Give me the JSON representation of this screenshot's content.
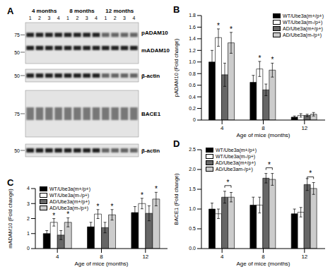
{
  "panel_labels": [
    "A"
  ],
  "blot": {
    "ages": [
      "4 months",
      "8 months",
      "12 months"
    ],
    "lanes": [
      1,
      2,
      3,
      4
    ],
    "panels": [
      {
        "bands": [
          "pADAM10",
          "mADAM10"
        ],
        "markers": [
          75,
          50
        ]
      },
      {
        "bands": [
          "β-actin"
        ],
        "markers": [
          50
        ]
      },
      {
        "bands": [
          "BACE1"
        ],
        "markers": [
          75
        ]
      },
      {
        "bands": [
          "β-actin"
        ],
        "markers": [
          50
        ]
      }
    ]
  },
  "chart_data": [
    {
      "type": "bar",
      "panel": "B",
      "x_label": "Age of mice (months)",
      "y_label": "pADAM10 (Fold change)",
      "categories": [
        "4",
        "8",
        "12"
      ],
      "ylim": [
        0,
        1.8
      ],
      "yticks": [
        0,
        {
          "value": 0.2,
          "label": "0.2"
        },
        {
          "value": 0.4,
          "label": "0.4"
        },
        {
          "value": 0.6,
          "label": "0.6"
        },
        {
          "value": 0.8,
          "label": "0.8"
        },
        {
          "value": 1.0,
          "label": "1.0"
        },
        {
          "value": 1.2,
          "label": "1.2"
        },
        {
          "value": 1.4,
          "label": "1.4"
        },
        {
          "value": 1.6,
          "label": "1.6"
        },
        {
          "value": 1.8,
          "label": "1.8"
        }
      ],
      "legend": "top right",
      "series": [
        {
          "name": "WT/Ube3a(m+/p+)",
          "color": "#000000",
          "values": [
            1.0,
            0.65,
            0.05
          ],
          "errors": [
            0.2,
            0.12,
            0.02
          ]
        },
        {
          "name": "WT/Ube3a(m-/p+)",
          "color": "#ffffff",
          "values": [
            1.42,
            0.88,
            0.08
          ],
          "errors": [
            0.15,
            0.13,
            0.03
          ],
          "significance": [
            "*",
            "*",
            null
          ]
        },
        {
          "name": "AD/Ube3a(m+/p+)",
          "color": "#666666",
          "values": [
            0.78,
            0.52,
            0.08
          ],
          "errors": [
            0.2,
            0.1,
            0.02
          ]
        },
        {
          "name": "AD/Ube3a(m-/p+)",
          "color": "#cccccc",
          "values": [
            1.33,
            0.86,
            0.1
          ],
          "errors": [
            0.18,
            0.12,
            0.03
          ],
          "significance": [
            "*",
            "*",
            null
          ]
        }
      ]
    },
    {
      "type": "bar",
      "panel": "C",
      "x_label": "Age of mice (months)",
      "y_label": "mADAM10 (Fold change)",
      "categories": [
        "4",
        "8",
        "12"
      ],
      "ylim": [
        0,
        4
      ],
      "yticks": [
        0,
        1,
        2,
        3,
        4
      ],
      "legend": "top left",
      "series": [
        {
          "name": "WT/Ube3a(m+/p+)",
          "color": "#000000",
          "values": [
            1.0,
            1.45,
            2.4
          ],
          "errors": [
            0.2,
            0.3,
            0.4
          ]
        },
        {
          "name": "WT/Ube3a(m-/p+)",
          "color": "#ffffff",
          "values": [
            1.75,
            2.3,
            3.0
          ],
          "errors": [
            0.25,
            0.3,
            0.35
          ],
          "significance": [
            "*",
            "*",
            "*"
          ]
        },
        {
          "name": "AD/Ube3a(m+/p+)",
          "color": "#666666",
          "values": [
            0.9,
            1.4,
            2.35
          ],
          "errors": [
            0.3,
            0.35,
            0.5
          ]
        },
        {
          "name": "AD/Ube3a(m-/p+)",
          "color": "#cccccc",
          "values": [
            1.75,
            2.25,
            3.3
          ],
          "errors": [
            0.3,
            0.35,
            0.45
          ],
          "significance": [
            "*",
            "*",
            "*"
          ]
        }
      ]
    },
    {
      "type": "bar",
      "panel": "D",
      "x_label": "Age of mice (months)",
      "y_label": "BACE1 (Fold change)",
      "categories": [
        "4",
        "8",
        "12"
      ],
      "ylim": [
        0,
        2.5
      ],
      "yticks": [
        {
          "value": 0,
          "label": "0.0"
        },
        {
          "value": 0.5,
          "label": "0.5"
        },
        {
          "value": 1.0,
          "label": "1.0"
        },
        {
          "value": 1.5,
          "label": "1.5"
        },
        {
          "value": 2.0,
          "label": "2.0"
        },
        {
          "value": 2.5,
          "label": "2.5"
        }
      ],
      "legend": "top left",
      "series": [
        {
          "name": "WT/Ube3a(m+/p+)",
          "color": "#000000",
          "values": [
            1.0,
            1.1,
            0.88
          ],
          "errors": [
            0.15,
            0.2,
            0.12
          ]
        },
        {
          "name": "WT/Ube3a(m-/p+)",
          "color": "#ffffff",
          "values": [
            0.88,
            1.1,
            0.92
          ],
          "errors": [
            0.12,
            0.2,
            0.12
          ]
        },
        {
          "name": "AD/Ube3a(m+/p+)",
          "color": "#666666",
          "values": [
            1.3,
            1.78,
            1.62
          ],
          "errors": [
            0.15,
            0.12,
            0.15
          ]
        },
        {
          "name": "AD/Ube3am-/p+)",
          "color": "#cccccc",
          "values": [
            1.3,
            1.75,
            1.52
          ],
          "errors": [
            0.12,
            0.15,
            0.15
          ],
          "significance_bracket": [
            "*",
            "*",
            "*"
          ]
        }
      ]
    }
  ]
}
